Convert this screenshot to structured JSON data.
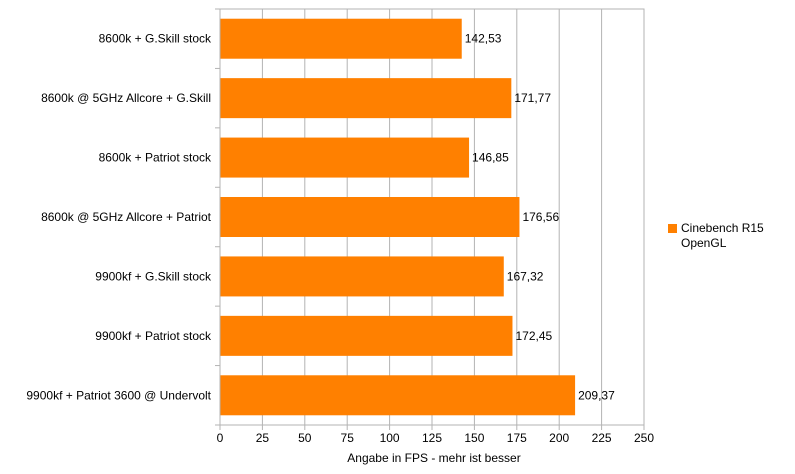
{
  "chart_data": {
    "type": "bar",
    "orientation": "horizontal",
    "categories": [
      "8600k + G.Skill stock",
      "8600k @ 5GHz Allcore + G.Skill",
      "8600k + Patriot stock",
      "8600k @ 5GHz Allcore + Patriot",
      "9900kf + G.Skill stock",
      "9900kf + Patriot stock",
      "9900kf + Patriot 3600 @ Undervolt"
    ],
    "series": [
      {
        "name": "Cinebench R15 OpenGL",
        "values": [
          142.53,
          171.77,
          146.85,
          176.56,
          167.32,
          172.45,
          209.37
        ],
        "labels": [
          "142,53",
          "171,77",
          "146,85",
          "176,56",
          "167,32",
          "172,45",
          "209,37"
        ],
        "color": "#ff8000"
      }
    ],
    "title": "",
    "xlabel": "Angabe in FPS - mehr ist besser",
    "ylabel": "",
    "xlim": [
      0,
      250
    ],
    "xticks": [
      0,
      25,
      50,
      75,
      100,
      125,
      150,
      175,
      200,
      225,
      250
    ],
    "grid": true,
    "legend": {
      "position": "right",
      "lines": [
        "Cinebench R15",
        "OpenGL"
      ]
    }
  }
}
